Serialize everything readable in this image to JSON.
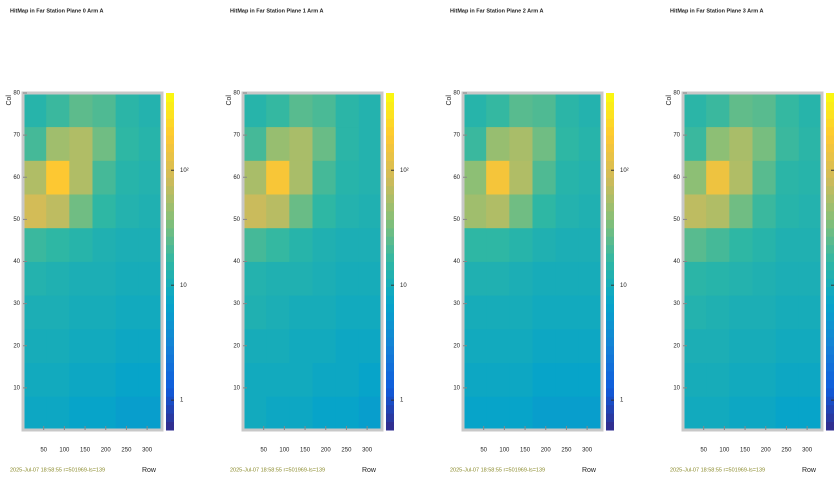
{
  "chart_data": [
    {
      "type": "heatmap",
      "title": "HitMap in Far Station Plane 0 Arm A",
      "xlabel": "Row",
      "ylabel": "Col",
      "footer": "2025-Jul-07 18:58:55 r=501969-ls=139",
      "xbins": [
        0,
        56,
        112,
        168,
        224,
        280,
        336
      ],
      "ybins": [
        0,
        8,
        16,
        24,
        32,
        40,
        48,
        56,
        64,
        72,
        80
      ],
      "xlim": [
        0,
        336
      ],
      "ylim": [
        0,
        80
      ],
      "xticks": [
        50,
        100,
        150,
        200,
        250,
        300
      ],
      "yticks": [
        10,
        20,
        30,
        40,
        50,
        60,
        70,
        80
      ],
      "zlim": [
        0.55,
        470
      ],
      "zticks": [
        1,
        10,
        {
          "value": 100,
          "label": "10²"
        }
      ],
      "log_z": true,
      "z": [
        [
          8,
          8,
          7,
          7,
          6,
          6
        ],
        [
          9,
          9,
          8,
          8,
          7,
          7
        ],
        [
          10,
          10,
          9,
          9,
          8,
          8
        ],
        [
          11,
          11,
          10,
          10,
          9,
          9
        ],
        [
          13,
          12,
          11,
          11,
          10,
          10
        ],
        [
          18,
          16,
          14,
          12,
          11,
          11
        ],
        [
          90,
          70,
          30,
          16,
          13,
          12
        ],
        [
          60,
          200,
          60,
          20,
          14,
          13
        ],
        [
          20,
          50,
          60,
          30,
          16,
          14
        ],
        [
          14,
          18,
          25,
          22,
          15,
          13
        ]
      ]
    },
    {
      "type": "heatmap",
      "title": "HitMap in Far Station Plane 1 Arm A",
      "xlabel": "Row",
      "ylabel": "Col",
      "footer": "2025-Jul-07 18:58:55 r=501969-ls=139",
      "xbins": [
        0,
        56,
        112,
        168,
        224,
        280,
        336
      ],
      "ybins": [
        0,
        8,
        16,
        24,
        32,
        40,
        48,
        56,
        64,
        72,
        80
      ],
      "xlim": [
        0,
        336
      ],
      "ylim": [
        0,
        80
      ],
      "xticks": [
        50,
        100,
        150,
        200,
        250,
        300
      ],
      "yticks": [
        10,
        20,
        30,
        40,
        50,
        60,
        70,
        80
      ],
      "zlim": [
        0.55,
        470
      ],
      "zticks": [
        1,
        10,
        {
          "value": 100,
          "label": "10²"
        }
      ],
      "log_z": true,
      "z": [
        [
          9,
          8,
          8,
          7,
          7,
          6
        ],
        [
          9,
          9,
          9,
          8,
          8,
          7
        ],
        [
          10,
          10,
          9,
          9,
          8,
          8
        ],
        [
          12,
          11,
          10,
          10,
          9,
          9
        ],
        [
          13,
          12,
          12,
          11,
          10,
          10
        ],
        [
          20,
          17,
          14,
          12,
          11,
          11
        ],
        [
          80,
          65,
          28,
          16,
          13,
          12
        ],
        [
          55,
          180,
          55,
          20,
          14,
          13
        ],
        [
          20,
          45,
          55,
          28,
          15,
          13
        ],
        [
          14,
          17,
          24,
          21,
          15,
          13
        ]
      ]
    },
    {
      "type": "heatmap",
      "title": "HitMap in Far Station Plane 2 Arm A",
      "xlabel": "Row",
      "ylabel": "Col",
      "footer": "2025-Jul-07 18:58:55 r=501969-ls=139",
      "xbins": [
        0,
        56,
        112,
        168,
        224,
        280,
        336
      ],
      "ybins": [
        0,
        8,
        16,
        24,
        32,
        40,
        48,
        56,
        64,
        72,
        80
      ],
      "xlim": [
        0,
        336
      ],
      "ylim": [
        0,
        80
      ],
      "xticks": [
        50,
        100,
        150,
        200,
        250,
        300
      ],
      "yticks": [
        10,
        20,
        30,
        40,
        50,
        60,
        70,
        80
      ],
      "zlim": [
        0.55,
        470
      ],
      "zticks": [
        1,
        10,
        {
          "value": 100,
          "label": "10²"
        }
      ],
      "log_z": true,
      "z": [
        [
          7,
          7,
          7,
          6,
          6,
          6
        ],
        [
          8,
          8,
          8,
          7,
          7,
          7
        ],
        [
          9,
          9,
          9,
          8,
          8,
          8
        ],
        [
          10,
          10,
          10,
          9,
          9,
          9
        ],
        [
          12,
          12,
          11,
          10,
          10,
          10
        ],
        [
          16,
          16,
          14,
          12,
          11,
          11
        ],
        [
          50,
          60,
          30,
          16,
          13,
          12
        ],
        [
          40,
          170,
          60,
          22,
          14,
          13
        ],
        [
          18,
          45,
          55,
          30,
          16,
          14
        ],
        [
          14,
          17,
          24,
          22,
          15,
          13
        ]
      ]
    },
    {
      "type": "heatmap",
      "title": "HitMap in Far Station Plane 3 Arm A",
      "xlabel": "Row",
      "ylabel": "Col",
      "footer": "2025-Jul-07 18:58:55 r=501969-ls=139",
      "xbins": [
        0,
        56,
        112,
        168,
        224,
        280,
        336
      ],
      "ybins": [
        0,
        8,
        16,
        24,
        32,
        40,
        48,
        56,
        64,
        72,
        80
      ],
      "xlim": [
        0,
        336
      ],
      "ylim": [
        0,
        80
      ],
      "xticks": [
        50,
        100,
        150,
        200,
        250,
        300
      ],
      "yticks": [
        10,
        20,
        30,
        40,
        50,
        60,
        70,
        80
      ],
      "zlim": [
        0.55,
        470
      ],
      "zticks": [
        1,
        10,
        {
          "value": 100,
          "label": "10²"
        }
      ],
      "log_z": true,
      "z": [
        [
          9,
          9,
          8,
          8,
          7,
          7
        ],
        [
          10,
          10,
          9,
          9,
          8,
          8
        ],
        [
          11,
          11,
          10,
          10,
          9,
          9
        ],
        [
          13,
          12,
          11,
          11,
          10,
          10
        ],
        [
          15,
          14,
          13,
          12,
          11,
          11
        ],
        [
          24,
          20,
          16,
          14,
          12,
          12
        ],
        [
          70,
          60,
          30,
          18,
          14,
          13
        ],
        [
          40,
          150,
          60,
          24,
          15,
          14
        ],
        [
          18,
          40,
          55,
          32,
          18,
          15
        ],
        [
          15,
          18,
          26,
          24,
          17,
          14
        ]
      ]
    }
  ]
}
